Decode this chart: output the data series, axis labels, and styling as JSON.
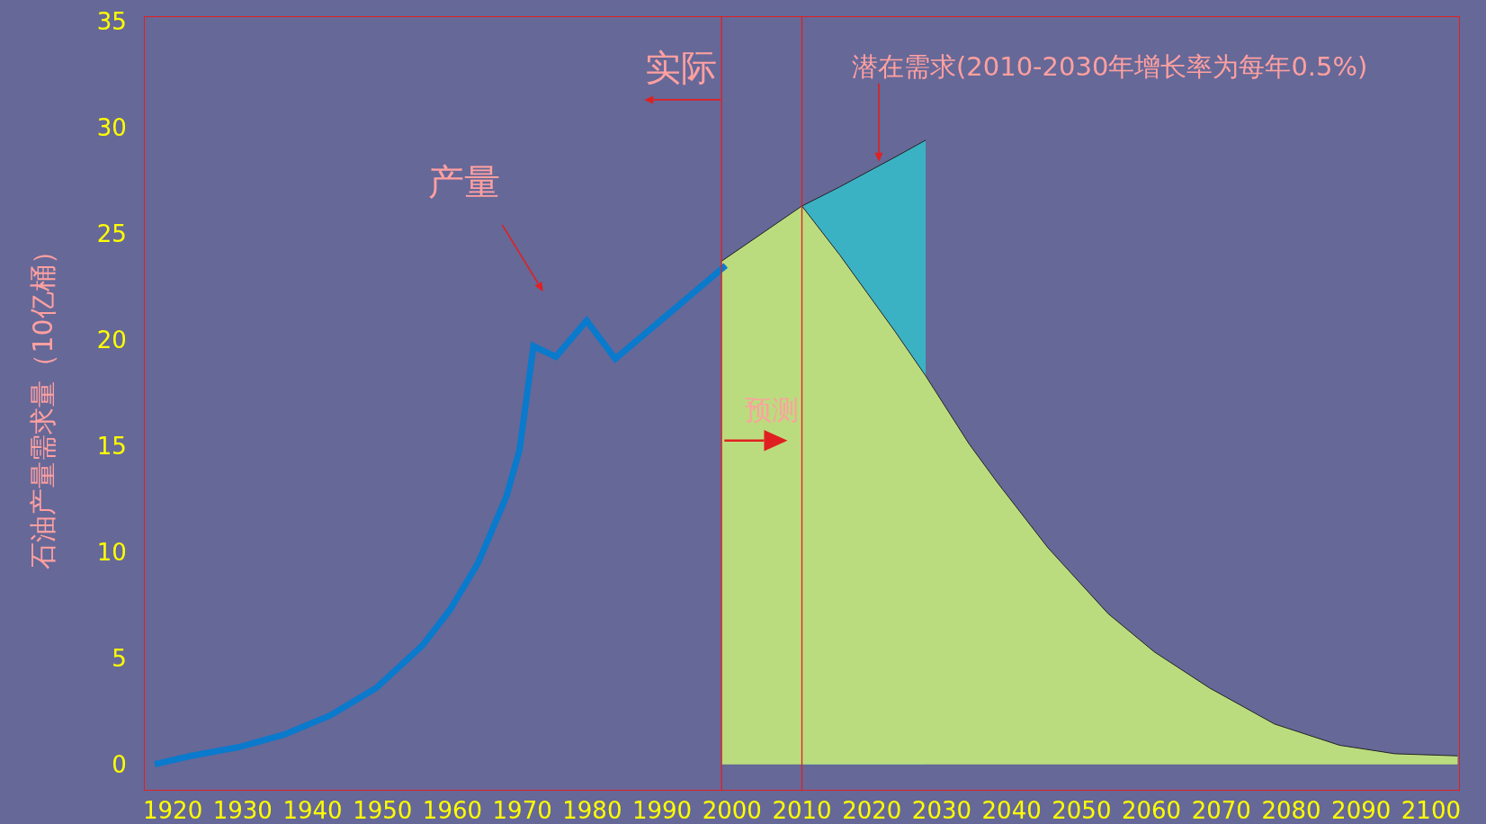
{
  "chart_data": {
    "type": "line",
    "ylabel": "石油产量需求量（10亿桶）",
    "xlim": [
      1916,
      2104
    ],
    "xticks": [
      1920,
      1930,
      1940,
      1950,
      1960,
      1970,
      1980,
      1990,
      2000,
      2010,
      2020,
      2030,
      2040,
      2050,
      2060,
      2070,
      2080,
      2090,
      2100
    ],
    "ylim": [
      -1.2,
      35.2
    ],
    "yticks": [
      0,
      5,
      10,
      15,
      20,
      25,
      30,
      35
    ],
    "grid": false,
    "marker": "none",
    "line_style": "solid",
    "series": [
      {
        "type": "line",
        "color": "#0a7acc",
        "x": [
          1917.4,
          1922.6,
          1929.3,
          1935.9,
          1942.5,
          1949.1,
          1955.7,
          1959.7,
          1963.7,
          1967.7,
          1969.6,
          1971.6,
          1974.8,
          1979.2,
          1983.3,
          1999.1
        ],
        "values": [
          0,
          0.4,
          0.8,
          1.4,
          2.3,
          3.6,
          5.6,
          7.3,
          9.5,
          12.6,
          14.8,
          19.7,
          19.2,
          20.9,
          19.1,
          23.5
        ]
      },
      {
        "type": "area",
        "color": "#3bb2c4",
        "x": [
          2010,
          2015.4,
          2023.3,
          2027.7
        ],
        "values": [
          26.3,
          27.2,
          28.6,
          29.4
        ]
      },
      {
        "type": "area",
        "color": "#bbdc7e",
        "x": [
          1998.5,
          2010,
          2015.4,
          2023.3,
          2027.7,
          2033.9,
          2037.9,
          2045.2,
          2053.8,
          2060.4,
          2068.3,
          2077.6,
          2086.9,
          2094.8,
          2103.8
        ],
        "values": [
          23.7,
          26.3,
          24.0,
          20.4,
          18.3,
          15.1,
          13.3,
          10.2,
          7.1,
          5.3,
          3.6,
          1.9,
          0.9,
          0.5,
          0.4
        ]
      }
    ],
    "ref_lines": [
      {
        "axis": "x",
        "value": 1998.5,
        "color": "#e02020"
      },
      {
        "axis": "x",
        "value": 2010,
        "color": "#e02020"
      }
    ],
    "annotations": [
      "实际",
      "预测",
      "产量",
      "潜在需求(2010-2030年增长率为每年0.5%)"
    ]
  }
}
